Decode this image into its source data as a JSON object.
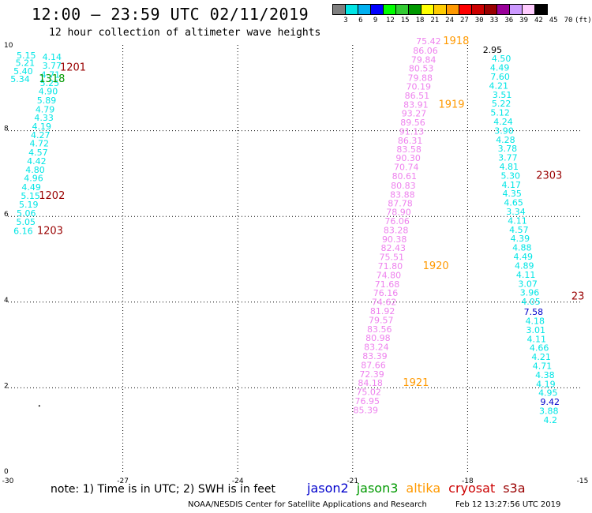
{
  "header": {
    "title": "12:00 – 23:59 UTC 02/11/2019",
    "subtitle": "12 hour collection of altimeter wave heights"
  },
  "colorbar": {
    "colors": [
      "#7f7f7f",
      "#00e5e5",
      "#00b0f0",
      "#0000ff",
      "#00ff00",
      "#33cc33",
      "#009900",
      "#ffff00",
      "#ffcc00",
      "#ff9900",
      "#ff0000",
      "#cc0000",
      "#990000",
      "#990099",
      "#cc99ff",
      "#ffccff",
      "#000000"
    ],
    "labels": [
      "3",
      "6",
      "9",
      "12",
      "15",
      "18",
      "21",
      "24",
      "27",
      "30",
      "33",
      "36",
      "39",
      "42",
      "45",
      "70",
      "(ft)"
    ]
  },
  "footer": {
    "note": "note: 1) Time is in UTC; 2) SWH is in feet",
    "legend": [
      {
        "name": "jason2",
        "color": "#0000cc"
      },
      {
        "name": "jason3",
        "color": "#009900"
      },
      {
        "name": "altika",
        "color": "#ff9900"
      },
      {
        "name": "cryosat",
        "color": "#cc0000"
      },
      {
        "name": "s3a",
        "color": "#990000"
      }
    ],
    "credit": "NOAA/NESDIS Center for Satellite Applications and Research",
    "timestamp": "Feb 12 13:27:56 UTC 2019"
  },
  "chart_data": {
    "type": "scatter",
    "xlim": [
      -30,
      -15
    ],
    "ylim": [
      0,
      10
    ],
    "xticks": [
      "-30",
      "-27",
      "-24",
      "-21",
      "-18",
      "-15"
    ],
    "yticks": [
      "0",
      "2",
      "4",
      "6",
      "8",
      "10"
    ],
    "grid": true,
    "series": [
      {
        "color": "#00e5e5",
        "points": [
          [
            -29.52,
            9.69,
            "5.15"
          ],
          [
            -29.55,
            9.51,
            "5.21"
          ],
          [
            -29.6,
            9.32,
            "5.40"
          ],
          [
            -29.68,
            9.13,
            "5.34"
          ],
          [
            -28.85,
            9.65,
            "4.14"
          ],
          [
            -28.85,
            9.45,
            "3.77"
          ],
          [
            -28.89,
            9.24,
            "4.71"
          ],
          [
            -28.91,
            9.04,
            "5.25"
          ],
          [
            -28.95,
            8.85,
            "4.90"
          ],
          [
            -28.99,
            8.64,
            "5.89"
          ],
          [
            -29.03,
            8.43,
            "4.79"
          ],
          [
            -29.06,
            8.23,
            "4.33"
          ],
          [
            -29.12,
            8.03,
            "4.19"
          ],
          [
            -29.15,
            7.83,
            "4.27"
          ],
          [
            -29.18,
            7.63,
            "4.72"
          ],
          [
            -29.21,
            7.42,
            "4.57"
          ],
          [
            -29.25,
            7.22,
            "4.42"
          ],
          [
            -29.29,
            7.02,
            "4.80"
          ],
          [
            -29.33,
            6.82,
            "4.96"
          ],
          [
            -29.39,
            6.61,
            "4.49"
          ],
          [
            -29.41,
            6.41,
            "5.15"
          ],
          [
            -29.46,
            6.21,
            "5.19"
          ],
          [
            -29.52,
            6.0,
            "5.06"
          ],
          [
            -29.53,
            5.8,
            "5.05"
          ],
          [
            -29.6,
            5.59,
            "6.16"
          ]
        ]
      },
      {
        "color": "#ee82ee",
        "points": [
          [
            -19.02,
            10.02,
            "75.42"
          ],
          [
            -19.1,
            9.8,
            "86.06"
          ],
          [
            -19.15,
            9.59,
            "79.84"
          ],
          [
            -19.21,
            9.38,
            "80.53"
          ],
          [
            -19.24,
            9.16,
            "79.88"
          ],
          [
            -19.28,
            8.96,
            "70.19"
          ],
          [
            -19.32,
            8.75,
            "86.51"
          ],
          [
            -19.35,
            8.54,
            "83.91"
          ],
          [
            -19.4,
            8.33,
            "93.27"
          ],
          [
            -19.43,
            8.12,
            "89.56"
          ],
          [
            -19.46,
            7.91,
            "91.13"
          ],
          [
            -19.5,
            7.7,
            "86.31"
          ],
          [
            -19.53,
            7.5,
            "83.58"
          ],
          [
            -19.55,
            7.29,
            "90.30"
          ],
          [
            -19.6,
            7.08,
            "70.74"
          ],
          [
            -19.65,
            6.87,
            "80.61"
          ],
          [
            -19.68,
            6.65,
            "80.83"
          ],
          [
            -19.7,
            6.44,
            "83.88"
          ],
          [
            -19.76,
            6.23,
            "87.78"
          ],
          [
            -19.8,
            6.03,
            "78.90"
          ],
          [
            -19.84,
            5.82,
            "76.06"
          ],
          [
            -19.87,
            5.61,
            "83.28"
          ],
          [
            -19.91,
            5.4,
            "90.38"
          ],
          [
            -19.94,
            5.19,
            "82.43"
          ],
          [
            -19.98,
            4.98,
            "75.51"
          ],
          [
            -20.02,
            4.77,
            "71.80"
          ],
          [
            -20.06,
            4.56,
            "74.80"
          ],
          [
            -20.1,
            4.35,
            "71.68"
          ],
          [
            -20.14,
            4.14,
            "76.16"
          ],
          [
            -20.18,
            3.93,
            "74.62"
          ],
          [
            -20.22,
            3.72,
            "81.92"
          ],
          [
            -20.26,
            3.51,
            "79.57"
          ],
          [
            -20.3,
            3.3,
            "83.56"
          ],
          [
            -20.34,
            3.09,
            "80.98"
          ],
          [
            -20.38,
            2.88,
            "83.24"
          ],
          [
            -20.42,
            2.67,
            "83.39"
          ],
          [
            -20.46,
            2.46,
            "87.66"
          ],
          [
            -20.5,
            2.25,
            "72.39"
          ],
          [
            -20.54,
            2.04,
            "84.18"
          ],
          [
            -20.58,
            1.83,
            "75.02"
          ],
          [
            -20.62,
            1.62,
            "76.95"
          ],
          [
            -20.66,
            1.41,
            "85.39"
          ]
        ]
      },
      {
        "color": "#00e5e5",
        "points": [
          [
            -17.12,
            9.61,
            "4.50"
          ],
          [
            -17.16,
            9.4,
            "4.49"
          ],
          [
            -17.15,
            9.19,
            "7.60"
          ],
          [
            -17.19,
            8.98,
            "4.21"
          ],
          [
            -17.1,
            8.77,
            "3.51"
          ],
          [
            -17.12,
            8.56,
            "5.22"
          ],
          [
            -17.15,
            8.35,
            "5.12"
          ],
          [
            -17.07,
            8.14,
            "4.24"
          ],
          [
            -17.05,
            7.93,
            "3.90"
          ],
          [
            -17.01,
            7.72,
            "4.28"
          ],
          [
            -16.96,
            7.51,
            "3.78"
          ],
          [
            -16.95,
            7.3,
            "3.77"
          ],
          [
            -16.92,
            7.09,
            "4.81"
          ],
          [
            -16.88,
            6.88,
            "5.30"
          ],
          [
            -16.86,
            6.67,
            "4.17"
          ],
          [
            -16.84,
            6.46,
            "4.35"
          ],
          [
            -16.8,
            6.25,
            "4.65"
          ],
          [
            -16.74,
            6.04,
            "3.34"
          ],
          [
            -16.7,
            5.83,
            "4.11"
          ],
          [
            -16.66,
            5.62,
            "4.57"
          ],
          [
            -16.63,
            5.41,
            "4.39"
          ],
          [
            -16.58,
            5.2,
            "4.88"
          ],
          [
            -16.55,
            4.99,
            "4.49"
          ],
          [
            -16.52,
            4.78,
            "4.89"
          ],
          [
            -16.48,
            4.57,
            "4.11"
          ],
          [
            -16.43,
            4.36,
            "3.07"
          ],
          [
            -16.38,
            4.15,
            "3.96"
          ],
          [
            -16.35,
            3.94,
            "4.05"
          ],
          [
            -16.24,
            3.49,
            "4.18"
          ],
          [
            -16.22,
            3.28,
            "3.01"
          ],
          [
            -16.2,
            3.07,
            "4.11"
          ],
          [
            -16.13,
            2.86,
            "4.66"
          ],
          [
            -16.08,
            2.65,
            "4.21"
          ],
          [
            -16.05,
            2.44,
            "4.71"
          ],
          [
            -15.98,
            2.23,
            "4.38"
          ],
          [
            -15.96,
            2.02,
            "4.19"
          ],
          [
            -15.9,
            1.81,
            "4.95"
          ],
          [
            -15.88,
            1.39,
            "3.88"
          ],
          [
            -15.84,
            1.18,
            "4.2"
          ]
        ]
      },
      {
        "color": "#000000",
        "points": [
          [
            -17.35,
            9.82,
            "2.95"
          ]
        ]
      },
      {
        "color": "#0000cc",
        "points": [
          [
            -16.28,
            3.7,
            "7.58"
          ],
          [
            -15.85,
            1.6,
            "9.42"
          ]
        ]
      }
    ],
    "passes": [
      {
        "label": "1201",
        "color": "#990000",
        "x": -28.3,
        "y": 9.4
      },
      {
        "label": "1318",
        "color": "#009900",
        "x": -28.85,
        "y": 9.13
      },
      {
        "label": "1202",
        "color": "#990000",
        "x": -28.85,
        "y": 6.41
      },
      {
        "label": "1203",
        "color": "#990000",
        "x": -28.9,
        "y": 5.59
      },
      {
        "label": "1918",
        "color": "#ff9900",
        "x": -18.3,
        "y": 10.02
      },
      {
        "label": "1919",
        "color": "#ff9900",
        "x": -18.42,
        "y": 8.54
      },
      {
        "label": "1920",
        "color": "#ff9900",
        "x": -18.83,
        "y": 4.77
      },
      {
        "label": "1921",
        "color": "#ff9900",
        "x": -19.35,
        "y": 2.04
      },
      {
        "label": "2303",
        "color": "#990000",
        "x": -15.87,
        "y": 6.88
      },
      {
        "label": "23",
        "color": "#990000",
        "x": -15.12,
        "y": 4.06
      }
    ],
    "marks": [
      [
        -29.18,
        1.58
      ]
    ]
  }
}
